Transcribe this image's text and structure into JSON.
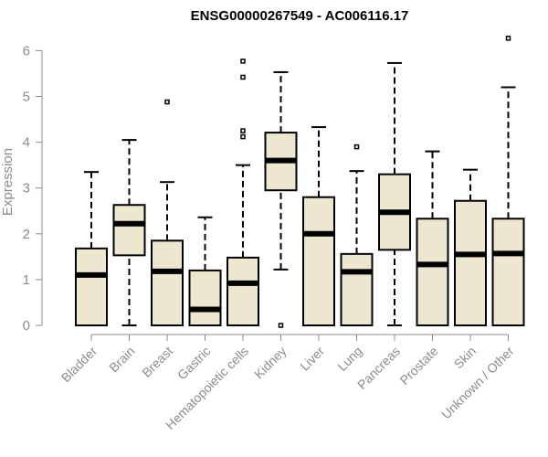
{
  "chart_data": {
    "type": "box",
    "title": "ENSG00000267549 - AC006116.17",
    "ylabel": "Expression",
    "xlabel": "",
    "ylim": [
      0,
      6.2
    ],
    "yticks": [
      0,
      1,
      2,
      3,
      4,
      5,
      6
    ],
    "grid": false,
    "legend": "none",
    "box_fill": "#ede7cf",
    "categories": [
      "Bladder",
      "Brain",
      "Breast",
      "Gastric",
      "Hematopoietic cells",
      "Kidney",
      "Liver",
      "Lung",
      "Pancreas",
      "Prostate",
      "Skin",
      "Unknown / Other"
    ],
    "boxes": [
      {
        "min": 0,
        "q1": 0,
        "median": 1.1,
        "q3": 1.68,
        "max": 3.35,
        "outliers": []
      },
      {
        "min": 0,
        "q1": 1.53,
        "median": 2.22,
        "q3": 2.63,
        "max": 4.05,
        "outliers": []
      },
      {
        "min": 0,
        "q1": 0,
        "median": 1.18,
        "q3": 1.85,
        "max": 3.13,
        "outliers": [
          4.88
        ]
      },
      {
        "min": 0,
        "q1": 0,
        "median": 0.35,
        "q3": 1.2,
        "max": 2.36,
        "outliers": []
      },
      {
        "min": 0,
        "q1": 0,
        "median": 0.92,
        "q3": 1.48,
        "max": 3.5,
        "outliers": [
          4.12,
          4.25,
          5.42,
          5.77
        ]
      },
      {
        "min": 1.22,
        "q1": 2.95,
        "median": 3.6,
        "q3": 4.21,
        "max": 5.53,
        "outliers": [
          0
        ]
      },
      {
        "min": 0,
        "q1": 0,
        "median": 2.0,
        "q3": 2.8,
        "max": 4.33,
        "outliers": []
      },
      {
        "min": 0,
        "q1": 0,
        "median": 1.17,
        "q3": 1.56,
        "max": 3.37,
        "outliers": [
          3.9
        ]
      },
      {
        "min": 0,
        "q1": 1.65,
        "median": 2.47,
        "q3": 3.3,
        "max": 5.73,
        "outliers": []
      },
      {
        "min": 0,
        "q1": 0,
        "median": 1.33,
        "q3": 2.33,
        "max": 3.8,
        "outliers": []
      },
      {
        "min": 0,
        "q1": 0,
        "median": 1.55,
        "q3": 2.72,
        "max": 3.4,
        "outliers": []
      },
      {
        "min": 0,
        "q1": 0,
        "median": 1.57,
        "q3": 2.33,
        "max": 5.2,
        "outliers": [
          6.27
        ]
      }
    ]
  }
}
